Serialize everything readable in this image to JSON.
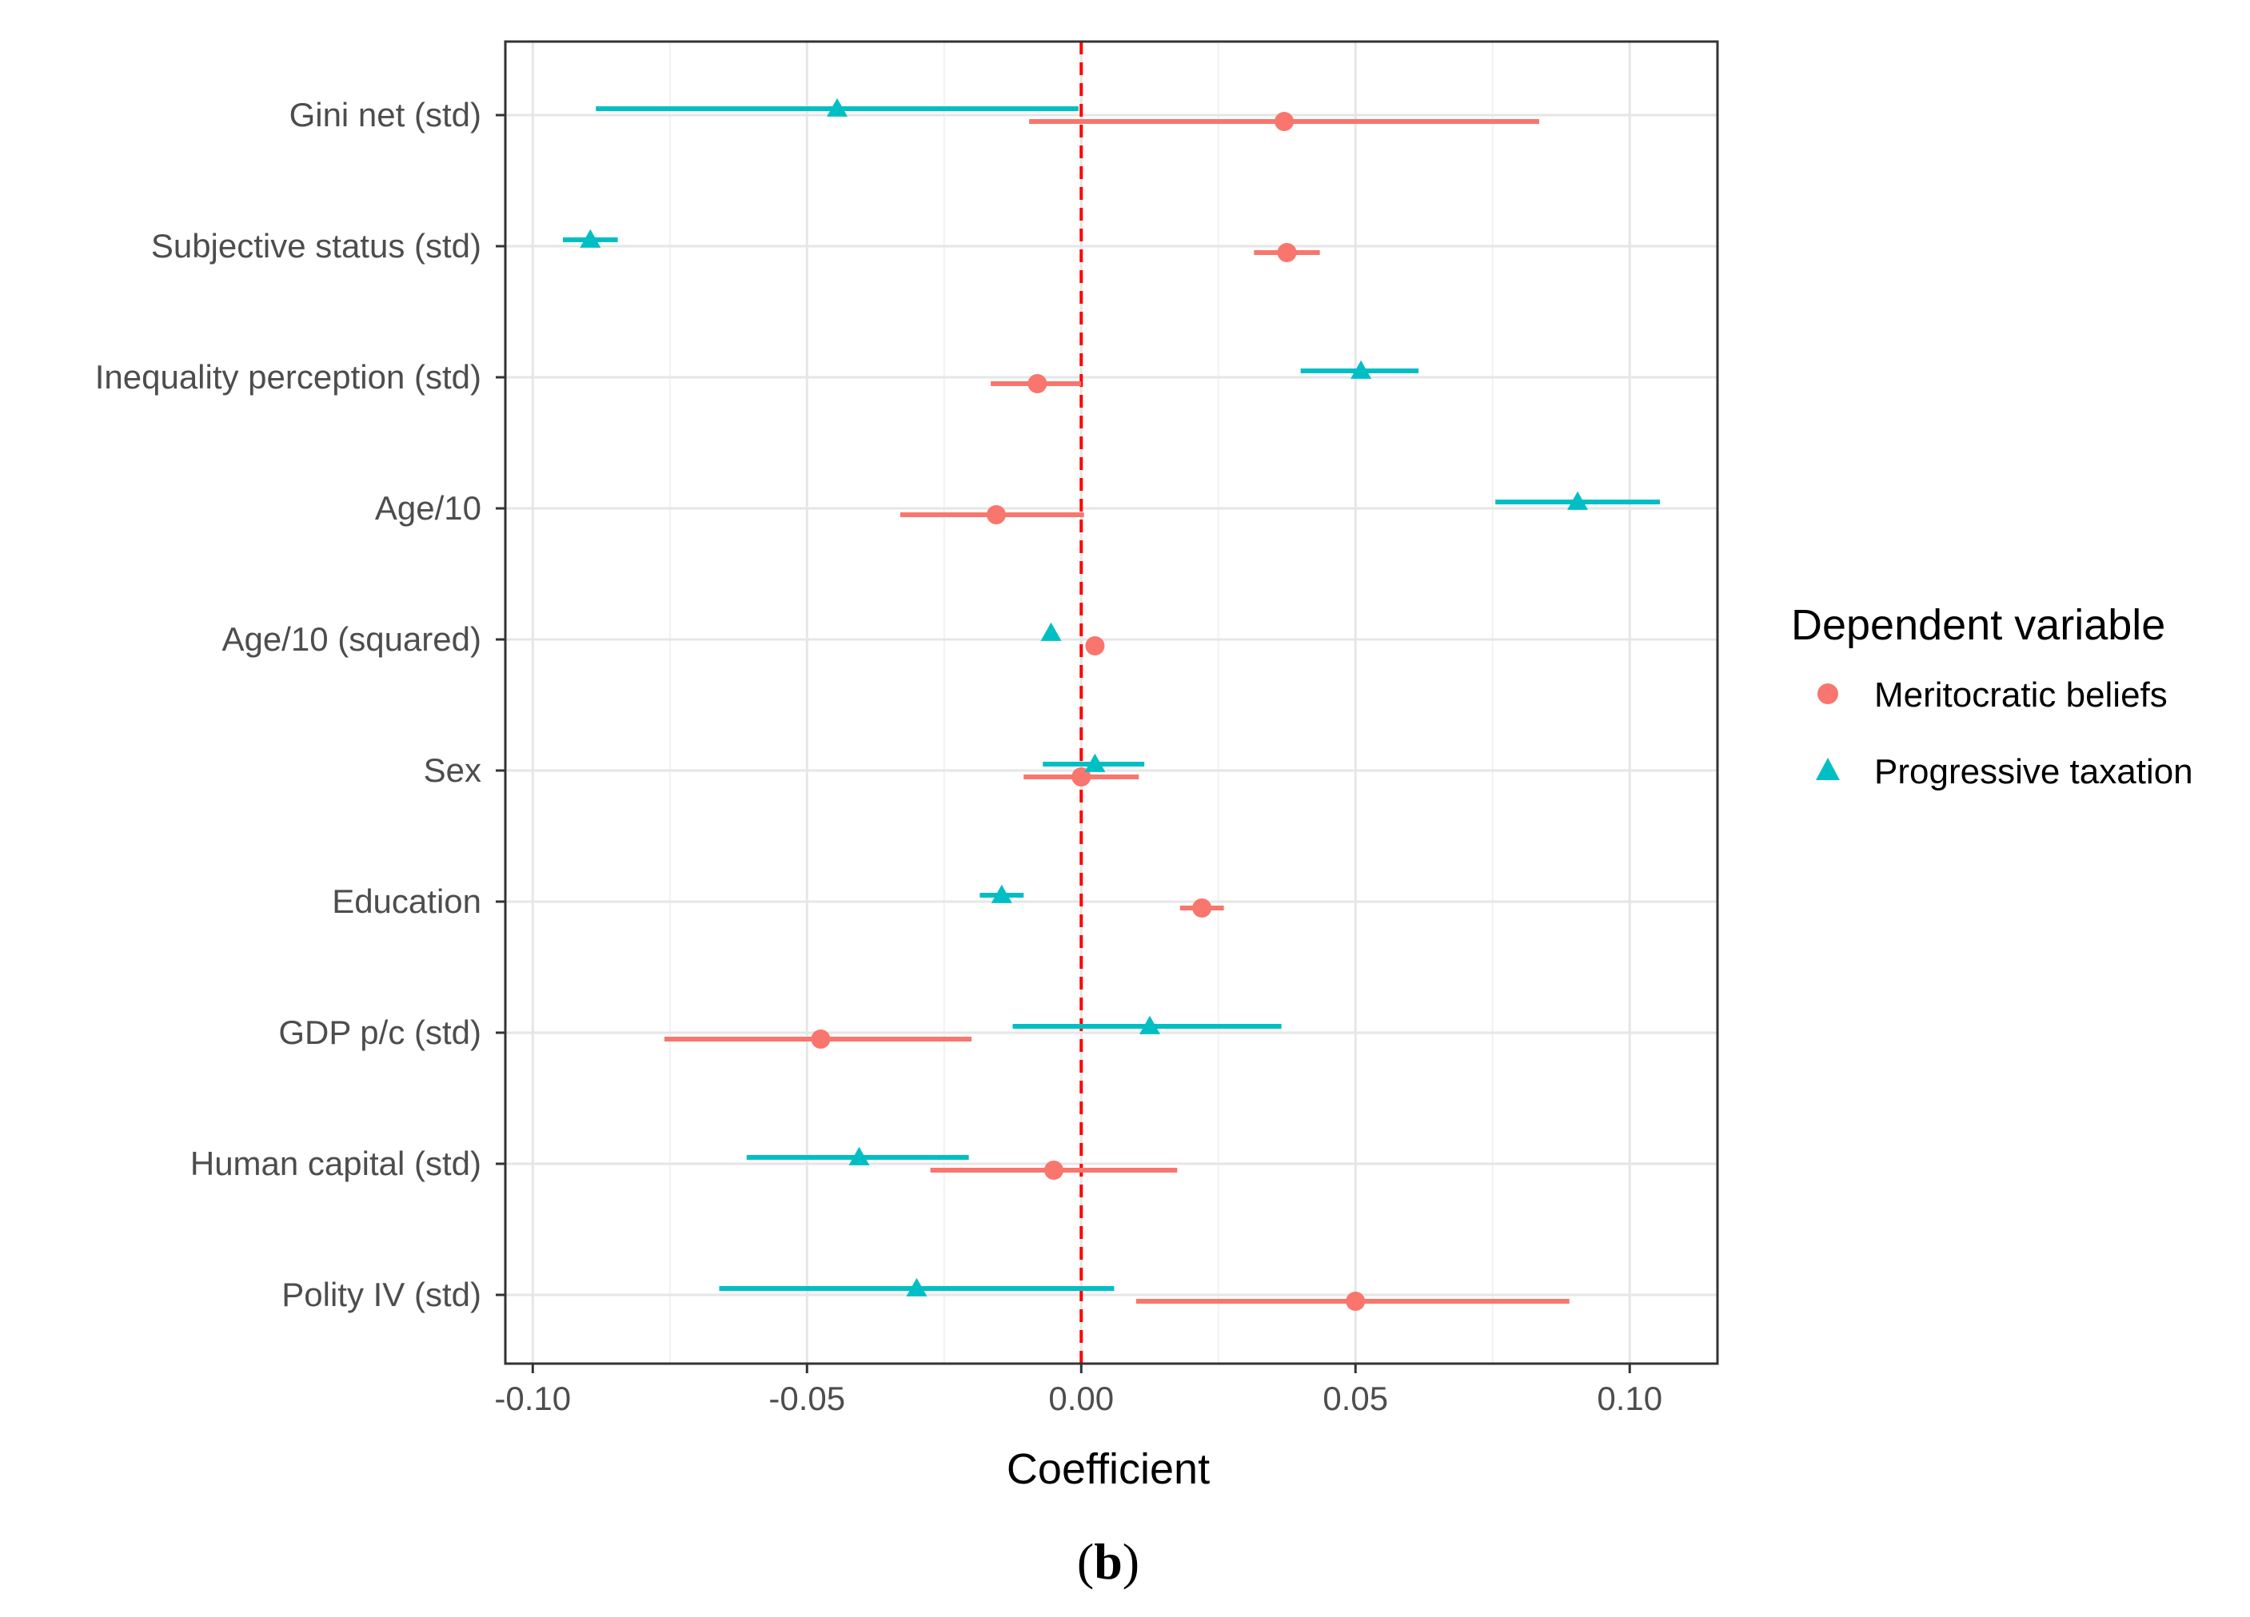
{
  "chart_data": {
    "type": "coefficient-plot",
    "xlabel": "Coefficient",
    "xlim": [
      -0.105,
      0.116
    ],
    "x_ticks": [
      -0.1,
      -0.05,
      0.0,
      0.05,
      0.1
    ],
    "x_tick_labels": [
      "-0.10",
      "-0.05",
      "0.00",
      "0.05",
      "0.10"
    ],
    "reference_line": 0.0,
    "grid": true,
    "legend": {
      "title": "Dependent variable",
      "position": "right"
    },
    "categories": [
      "Gini net (std)",
      "Subjective status (std)",
      "Inequality perception (std)",
      "Age/10",
      "Age/10 (squared)",
      "Sex",
      "Education",
      "GDP p/c (std)",
      "Human capital (std)",
      "Polity IV (std)"
    ],
    "series": [
      {
        "name": "Meritocratic beliefs",
        "marker": "circle",
        "color": "#F8766D",
        "estimates": [
          0.037,
          0.0375,
          -0.008,
          -0.0155,
          0.0025,
          0.0,
          0.022,
          -0.0475,
          -0.005,
          0.05
        ],
        "lower": [
          -0.0095,
          0.0315,
          -0.0165,
          -0.033,
          0.0025,
          -0.0105,
          0.018,
          -0.076,
          -0.0275,
          0.01
        ],
        "upper": [
          0.0835,
          0.0435,
          0.0,
          0.0005,
          0.0025,
          0.0105,
          0.026,
          -0.02,
          0.0175,
          0.089
        ]
      },
      {
        "name": "Progressive taxation",
        "marker": "triangle",
        "color": "#00BFC4",
        "estimates": [
          -0.0445,
          -0.0895,
          0.051,
          0.0905,
          -0.0055,
          0.0025,
          -0.0145,
          0.0125,
          -0.0405,
          -0.03
        ],
        "lower": [
          -0.0885,
          -0.0945,
          0.04,
          0.0755,
          -0.0055,
          -0.007,
          -0.0185,
          -0.0125,
          -0.061,
          -0.066
        ],
        "upper": [
          -0.0005,
          -0.0845,
          0.0615,
          0.1055,
          -0.0055,
          0.0115,
          -0.0105,
          0.0365,
          -0.0205,
          0.006
        ]
      }
    ]
  },
  "caption": {
    "open": "(",
    "letter": "b",
    "close": ")"
  }
}
